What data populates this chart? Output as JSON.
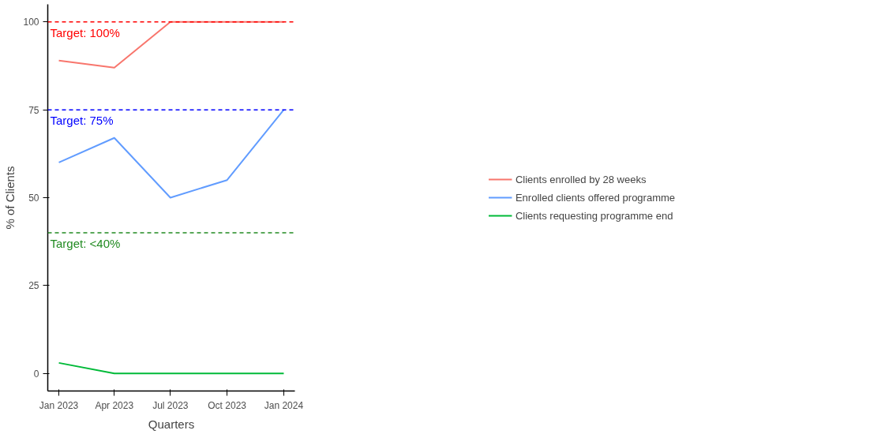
{
  "chart_data": {
    "type": "line",
    "xlabel": "Quarters",
    "ylabel": "% of Clients",
    "x": [
      "2023-01",
      "2023-04",
      "2023-07",
      "2023-10",
      "2024-01"
    ],
    "series": [
      {
        "name": "Clients enrolled by 28 weeks",
        "color": "#f8766d",
        "values": [
          89,
          87,
          100,
          100,
          100
        ]
      },
      {
        "name": "Enrolled clients offered programme",
        "color": "#619cff",
        "values": [
          60,
          67,
          50,
          55,
          75
        ]
      },
      {
        "name": "Clients requesting programme end",
        "color": "#00ba38",
        "values": [
          3,
          0,
          0,
          0,
          0
        ]
      }
    ],
    "xlim": [
      "2022-12-14",
      "2024-01-19"
    ],
    "ylim": [
      -5,
      105
    ],
    "xticks": [
      {
        "value": "2023-01",
        "label": "Jan 2023"
      },
      {
        "value": "2023-04",
        "label": "Apr 2023"
      },
      {
        "value": "2023-07",
        "label": "Jul 2023"
      },
      {
        "value": "2023-10",
        "label": "Oct 2023"
      },
      {
        "value": "2024-01",
        "label": "Jan 2024"
      }
    ],
    "yticks": [
      0,
      25,
      50,
      75,
      100
    ],
    "ref_lines": [
      {
        "axis": "y",
        "value": 100,
        "label": "Target: 100%",
        "color": "#ff0000",
        "line_style": "dashed"
      },
      {
        "axis": "y",
        "value": 75,
        "label": "Target: 75%",
        "color": "#0000ff",
        "line_style": "dashed"
      },
      {
        "axis": "y",
        "value": 40,
        "label": "Target: <40%",
        "color": "#228b22",
        "line_style": "dashed"
      }
    ],
    "grid": false,
    "legend": "right",
    "marker": "none",
    "line_style": "solid"
  }
}
